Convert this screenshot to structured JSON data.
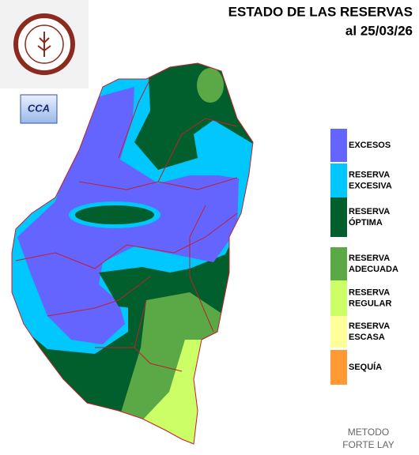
{
  "header": {
    "title": "ESTADO DE LAS RESERVAS",
    "date": "al 25/03/26"
  },
  "badge": "CCA",
  "legend": [
    {
      "lines": [
        "EXCESOS"
      ],
      "color": "#6464ff"
    },
    {
      "lines": [
        "RESERVA",
        "EXCESIVA"
      ],
      "color": "#00c8ff"
    },
    {
      "lines": [
        "RESERVA",
        "ÓPTIMA"
      ],
      "color": "#005f2d"
    },
    {
      "lines": [
        "RESERVA",
        "ADECUADA"
      ],
      "color": "#5aa846"
    },
    {
      "lines": [
        "RESERVA",
        "REGULAR"
      ],
      "color": "#ccff66"
    },
    {
      "lines": [
        "RESERVA",
        "ESCASA"
      ],
      "color": "#ffff99"
    },
    {
      "lines": [
        "SEQUÍA"
      ],
      "color": "#ff9933"
    }
  ],
  "method": [
    "METODO",
    "FORTE LAY"
  ]
}
